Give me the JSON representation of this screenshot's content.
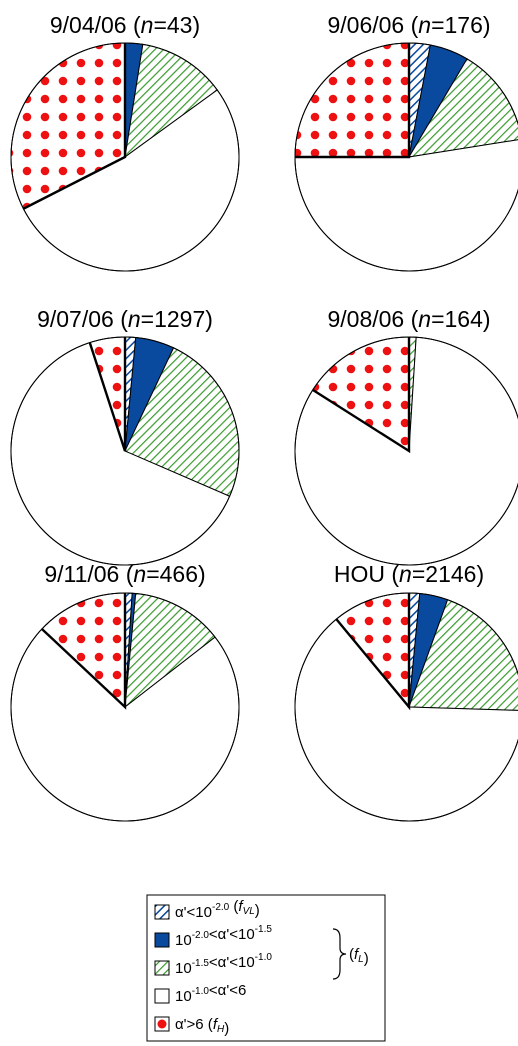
{
  "chart_data": [
    {
      "type": "pie",
      "title": {
        "date": "9/04/06",
        "n": "43"
      },
      "slices": [
        {
          "category": "vl",
          "percent": 0.0
        },
        {
          "category": "l1",
          "percent": 2.5
        },
        {
          "category": "l2",
          "percent": 12.5
        },
        {
          "category": "mid",
          "percent": 52.5
        },
        {
          "category": "h",
          "percent": 32.5
        }
      ]
    },
    {
      "type": "pie",
      "title": {
        "date": "9/06/06",
        "n": "176"
      },
      "slices": [
        {
          "category": "vl",
          "percent": 3.0
        },
        {
          "category": "l1",
          "percent": 5.5
        },
        {
          "category": "l2",
          "percent": 14.0
        },
        {
          "category": "mid",
          "percent": 52.5
        },
        {
          "category": "h",
          "percent": 25.0
        }
      ]
    },
    {
      "type": "pie",
      "title": {
        "date": "9/07/06",
        "n": "1297"
      },
      "slices": [
        {
          "category": "vl",
          "percent": 1.5
        },
        {
          "category": "l1",
          "percent": 5.5
        },
        {
          "category": "l2",
          "percent": 24.5
        },
        {
          "category": "mid",
          "percent": 63.5
        },
        {
          "category": "h",
          "percent": 5.0
        }
      ]
    },
    {
      "type": "pie",
      "title": {
        "date": "9/08/06",
        "n": "164"
      },
      "slices": [
        {
          "category": "vl",
          "percent": 0.0
        },
        {
          "category": "l1",
          "percent": 0.0
        },
        {
          "category": "l2",
          "percent": 1.0
        },
        {
          "category": "mid",
          "percent": 83.0
        },
        {
          "category": "h",
          "percent": 16.0
        }
      ]
    },
    {
      "type": "pie",
      "title": {
        "date": "9/11/06",
        "n": "466"
      },
      "slices": [
        {
          "category": "vl",
          "percent": 1.0
        },
        {
          "category": "l1",
          "percent": 0.5
        },
        {
          "category": "l2",
          "percent": 13.0
        },
        {
          "category": "mid",
          "percent": 72.5
        },
        {
          "category": "h",
          "percent": 13.0
        }
      ]
    },
    {
      "type": "pie",
      "title": {
        "date": "HOU",
        "n": "2146"
      },
      "slices": [
        {
          "category": "vl",
          "percent": 1.5
        },
        {
          "category": "l1",
          "percent": 4.0
        },
        {
          "category": "l2",
          "percent": 20.0
        },
        {
          "category": "mid",
          "percent": 63.5
        },
        {
          "category": "h",
          "percent": 11.0
        }
      ]
    }
  ],
  "legend": {
    "items": [
      {
        "key": "vl",
        "parts": [
          "α'<10",
          "-2.0",
          " (f",
          "VL",
          ")"
        ]
      },
      {
        "key": "l1",
        "parts": [
          "10",
          "-2.0",
          "<α'<10",
          "-1.5"
        ]
      },
      {
        "key": "l2",
        "parts": [
          "10",
          "-1.5",
          "<α'<10",
          "-1.0"
        ]
      },
      {
        "key": "mid",
        "parts": [
          "10",
          "-1.0",
          "<α'<6"
        ]
      },
      {
        "key": "h",
        "parts": [
          "α'>6 (f",
          "H",
          ")"
        ]
      }
    ],
    "brace_label": [
      "(f",
      "L",
      ")"
    ]
  },
  "colors": {
    "blue": "#0a4a9e",
    "green": "#3a9a2e",
    "red": "#ee1111",
    "outline": "#000000",
    "fill": "#ffffff"
  }
}
